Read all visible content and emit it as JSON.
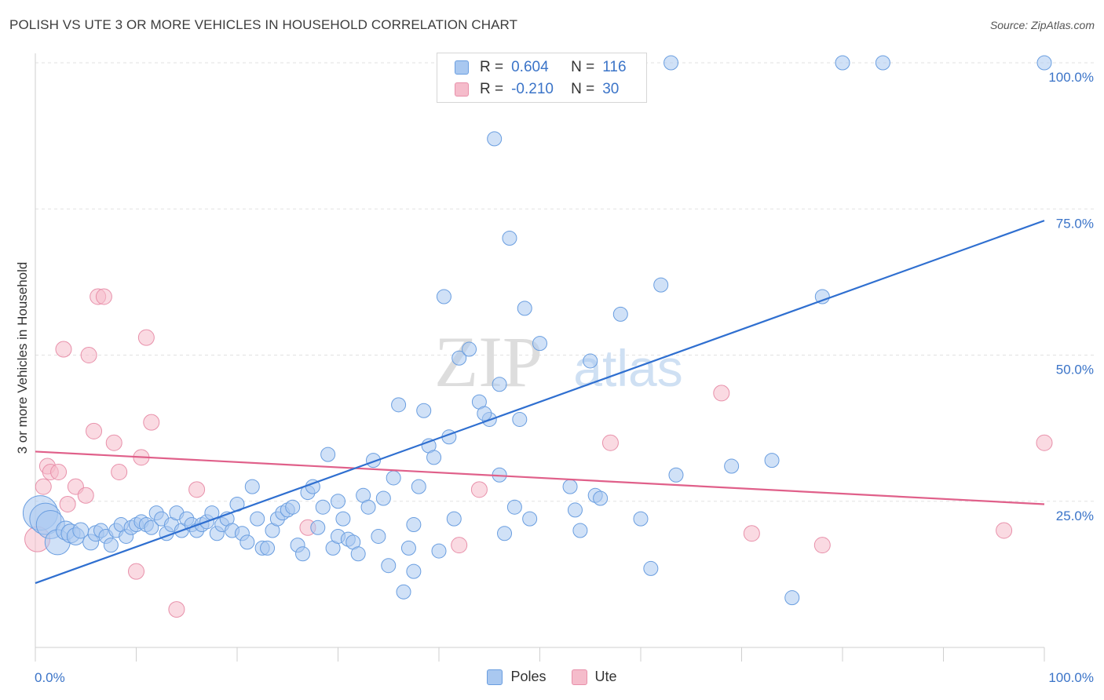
{
  "header": {
    "title": "POLISH VS UTE 3 OR MORE VEHICLES IN HOUSEHOLD CORRELATION CHART",
    "source": "Source: ZipAtlas.com"
  },
  "watermark": {
    "zip": "ZIP",
    "atlas": "atlas"
  },
  "legend": {
    "rows": [
      {
        "r_label": "R =",
        "r_value": "0.604",
        "n_label": "N =",
        "n_value": "116",
        "color": "#a9c8f0"
      },
      {
        "r_label": "R =",
        "r_value": "-0.210",
        "n_label": "N =",
        "n_value": "30",
        "color": "#f5bccb"
      }
    ]
  },
  "bottom_legend": {
    "items": [
      {
        "label": "Poles",
        "color": "#a9c8f0"
      },
      {
        "label": "Ute",
        "color": "#f5bccb"
      }
    ]
  },
  "colors": {
    "poles_fill": "#a9c8f0",
    "poles_stroke": "#6a9ee0",
    "poles_line": "#2f6fd0",
    "ute_fill": "#f5bccb",
    "ute_stroke": "#e890aa",
    "ute_line": "#e0608a",
    "tick_text": "#3b74c8",
    "grid": "#e2e2e2"
  },
  "chart_data": {
    "type": "scatter",
    "title": "POLISH VS UTE 3 OR MORE VEHICLES IN HOUSEHOLD CORRELATION CHART",
    "xlabel": "",
    "ylabel": "3 or more Vehicles in Household",
    "xlim": [
      0,
      100
    ],
    "ylim": [
      0,
      100
    ],
    "x_tick_labels": [
      "0.0%",
      "100.0%"
    ],
    "y_ticks": [
      25,
      50,
      75,
      100
    ],
    "y_tick_labels": [
      "25.0%",
      "50.0%",
      "75.0%",
      "100.0%"
    ],
    "grid": true,
    "legend_placement": "top-center",
    "series": [
      {
        "name": "Poles",
        "r": 0.604,
        "n": 116,
        "trend": {
          "x": [
            0,
            100
          ],
          "y": [
            11,
            73
          ]
        },
        "points": [
          [
            0.5,
            23,
            22
          ],
          [
            1,
            22,
            20
          ],
          [
            1.5,
            21,
            18
          ],
          [
            2.2,
            18,
            16
          ],
          [
            3,
            20,
            12
          ],
          [
            3.5,
            19.5,
            12
          ],
          [
            4,
            19,
            11
          ],
          [
            4.5,
            20,
            10
          ],
          [
            5.5,
            18,
            10
          ],
          [
            6,
            19.5,
            10
          ],
          [
            6.5,
            20,
            9
          ],
          [
            7,
            19,
            9
          ],
          [
            8,
            20,
            9
          ],
          [
            8.5,
            21,
            9
          ],
          [
            9,
            19,
            9
          ],
          [
            9.5,
            20.5,
            9
          ],
          [
            10,
            21,
            9
          ],
          [
            10.5,
            21.5,
            9
          ],
          [
            11,
            21,
            9
          ],
          [
            11.5,
            20.5,
            9
          ],
          [
            12,
            23,
            9
          ],
          [
            12.5,
            22,
            9
          ],
          [
            13,
            19.5,
            9
          ],
          [
            13.5,
            21,
            9
          ],
          [
            14,
            23,
            9
          ],
          [
            14.5,
            20,
            9
          ],
          [
            15,
            22,
            9
          ],
          [
            15.5,
            21,
            9
          ],
          [
            16,
            20,
            9
          ],
          [
            16.5,
            21,
            9
          ],
          [
            17,
            21.5,
            9
          ],
          [
            17.5,
            23,
            9
          ],
          [
            18,
            19.5,
            9
          ],
          [
            18.5,
            21,
            9
          ],
          [
            19,
            22,
            9
          ],
          [
            19.5,
            20,
            9
          ],
          [
            20,
            24.5,
            9
          ],
          [
            20.5,
            19.5,
            9
          ],
          [
            21,
            18,
            9
          ],
          [
            21.5,
            27.5,
            9
          ],
          [
            22,
            22,
            9
          ],
          [
            22.5,
            17,
            9
          ],
          [
            23,
            17,
            9
          ],
          [
            23.5,
            20,
            9
          ],
          [
            24,
            22,
            9
          ],
          [
            24.5,
            23,
            9
          ],
          [
            25,
            23.5,
            9
          ],
          [
            25.5,
            24,
            9
          ],
          [
            26,
            17.5,
            9
          ],
          [
            26.5,
            16,
            9
          ],
          [
            27,
            26.5,
            9
          ],
          [
            27.5,
            27.5,
            9
          ],
          [
            28,
            20.5,
            9
          ],
          [
            28.5,
            24,
            9
          ],
          [
            29,
            33,
            9
          ],
          [
            29.5,
            17,
            9
          ],
          [
            30,
            19,
            9
          ],
          [
            30.5,
            22,
            9
          ],
          [
            31,
            18.5,
            9
          ],
          [
            31.5,
            18,
            9
          ],
          [
            32,
            16,
            9
          ],
          [
            32.5,
            26,
            9
          ],
          [
            33,
            24,
            9
          ],
          [
            33.5,
            32,
            9
          ],
          [
            34,
            19,
            9
          ],
          [
            34.5,
            25.5,
            9
          ],
          [
            35,
            14,
            9
          ],
          [
            35.5,
            29,
            9
          ],
          [
            36,
            41.5,
            9
          ],
          [
            36.5,
            9.5,
            9
          ],
          [
            37,
            17,
            9
          ],
          [
            37.5,
            13,
            9
          ],
          [
            38,
            27.5,
            9
          ],
          [
            38.5,
            40.5,
            9
          ],
          [
            39,
            34.5,
            9
          ],
          [
            39.5,
            32.5,
            9
          ],
          [
            40,
            16.5,
            9
          ],
          [
            40.5,
            60,
            9
          ],
          [
            41,
            36,
            9
          ],
          [
            41.5,
            22,
            9
          ],
          [
            42,
            49.5,
            9
          ],
          [
            43,
            51,
            9
          ],
          [
            44,
            42,
            9
          ],
          [
            45,
            39,
            9
          ],
          [
            45.5,
            87,
            9
          ],
          [
            46,
            29.5,
            9
          ],
          [
            46.5,
            19.5,
            9
          ],
          [
            47,
            70,
            9
          ],
          [
            48,
            39,
            9
          ],
          [
            48.5,
            58,
            9
          ],
          [
            49,
            22,
            9
          ],
          [
            50,
            52,
            9
          ],
          [
            51,
            100,
            9
          ],
          [
            53,
            27.5,
            9
          ],
          [
            53.5,
            23.5,
            9
          ],
          [
            55,
            49,
            9
          ],
          [
            55.5,
            26,
            9
          ],
          [
            56,
            25.5,
            9
          ],
          [
            58,
            57,
            9
          ],
          [
            60,
            22,
            9
          ],
          [
            61,
            13.5,
            9
          ],
          [
            62,
            62,
            9
          ],
          [
            63,
            100,
            9
          ],
          [
            69,
            31,
            9
          ],
          [
            73,
            32,
            9
          ],
          [
            75,
            8.5,
            9
          ],
          [
            78,
            60,
            9
          ],
          [
            80,
            100,
            9
          ],
          [
            84,
            100,
            9
          ],
          [
            100,
            100,
            9
          ],
          [
            63.5,
            29.5,
            9
          ],
          [
            46,
            45,
            9
          ],
          [
            54,
            20,
            9
          ],
          [
            47.5,
            24,
            9
          ],
          [
            44.5,
            40,
            9
          ],
          [
            37.5,
            21,
            9
          ],
          [
            30,
            25,
            9
          ],
          [
            7.5,
            17.5,
            9
          ]
        ]
      },
      {
        "name": "Ute",
        "r": -0.21,
        "n": 30,
        "trend": {
          "x": [
            0,
            100
          ],
          "y": [
            33.5,
            24.5
          ]
        },
        "points": [
          [
            0.2,
            18.5,
            16
          ],
          [
            0.8,
            27.5,
            10
          ],
          [
            1.2,
            31,
            10
          ],
          [
            1.5,
            30,
            10
          ],
          [
            2.3,
            30,
            10
          ],
          [
            2.8,
            51,
            10
          ],
          [
            3.2,
            24.5,
            10
          ],
          [
            4,
            27.5,
            10
          ],
          [
            5,
            26,
            10
          ],
          [
            5.3,
            50,
            10
          ],
          [
            5.8,
            37,
            10
          ],
          [
            6.2,
            60,
            10
          ],
          [
            6.8,
            60,
            10
          ],
          [
            7.8,
            35,
            10
          ],
          [
            8.3,
            30,
            10
          ],
          [
            10,
            13,
            10
          ],
          [
            10.5,
            32.5,
            10
          ],
          [
            11,
            53,
            10
          ],
          [
            11.5,
            38.5,
            10
          ],
          [
            14,
            6.5,
            10
          ],
          [
            16,
            27,
            10
          ],
          [
            27,
            20.5,
            10
          ],
          [
            42,
            17.5,
            10
          ],
          [
            44,
            27,
            10
          ],
          [
            57,
            35,
            10
          ],
          [
            68,
            43.5,
            10
          ],
          [
            71,
            19.5,
            10
          ],
          [
            78,
            17.5,
            10
          ],
          [
            96,
            20,
            10
          ],
          [
            100,
            35,
            10
          ]
        ]
      }
    ]
  }
}
